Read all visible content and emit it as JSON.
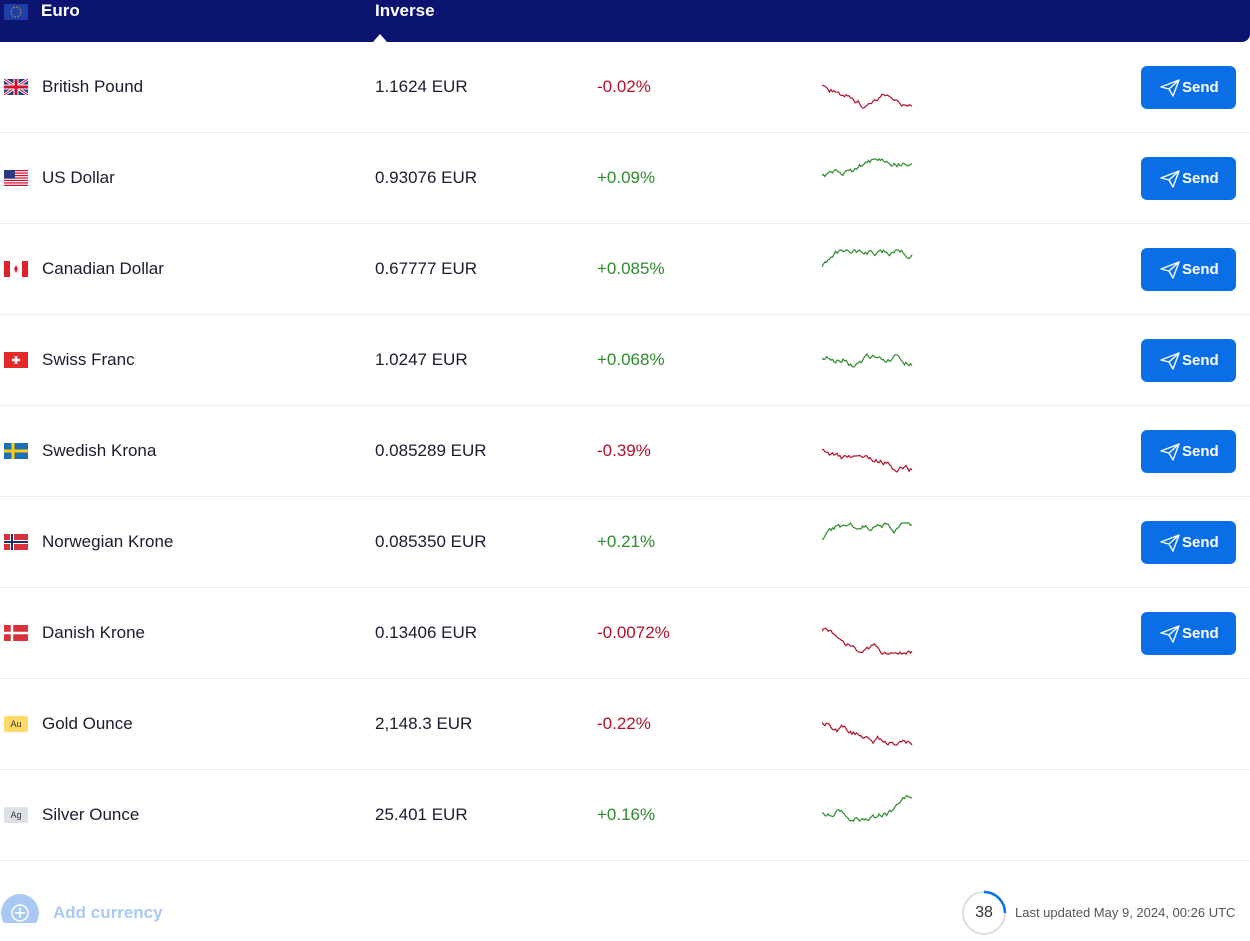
{
  "header": {
    "base": "Euro",
    "inverse": "Inverse"
  },
  "rows": [
    {
      "name": "British Pound",
      "rate": "1.1624 EUR",
      "change": "-0.02%",
      "action": "Send"
    },
    {
      "name": "US Dollar",
      "rate": "0.93076 EUR",
      "change": "+0.09%",
      "action": "Send"
    },
    {
      "name": "Canadian Dollar",
      "rate": "0.67777 EUR",
      "change": "+0.085%",
      "action": "Send"
    },
    {
      "name": "Swiss Franc",
      "rate": "1.0247 EUR",
      "change": "+0.068%",
      "action": "Send"
    },
    {
      "name": "Swedish Krona",
      "rate": "0.085289 EUR",
      "change": "-0.39%",
      "action": "Send"
    },
    {
      "name": "Norwegian Krone",
      "rate": "0.085350 EUR",
      "change": "+0.21%",
      "action": "Send"
    },
    {
      "name": "Danish Krone",
      "rate": "0.13406 EUR",
      "change": "-0.0072%",
      "action": "Send"
    },
    {
      "badge": "Au",
      "name": "Gold Ounce",
      "rate": "2,148.3 EUR",
      "change": "-0.22%"
    },
    {
      "badge": "Ag",
      "name": "Silver Ounce",
      "rate": "25.401 EUR",
      "change": "+0.16%"
    }
  ],
  "footer": {
    "add": "Add currency",
    "countdown": "38",
    "updated": "Last updated May 9, 2024, 00:26 UTC"
  }
}
